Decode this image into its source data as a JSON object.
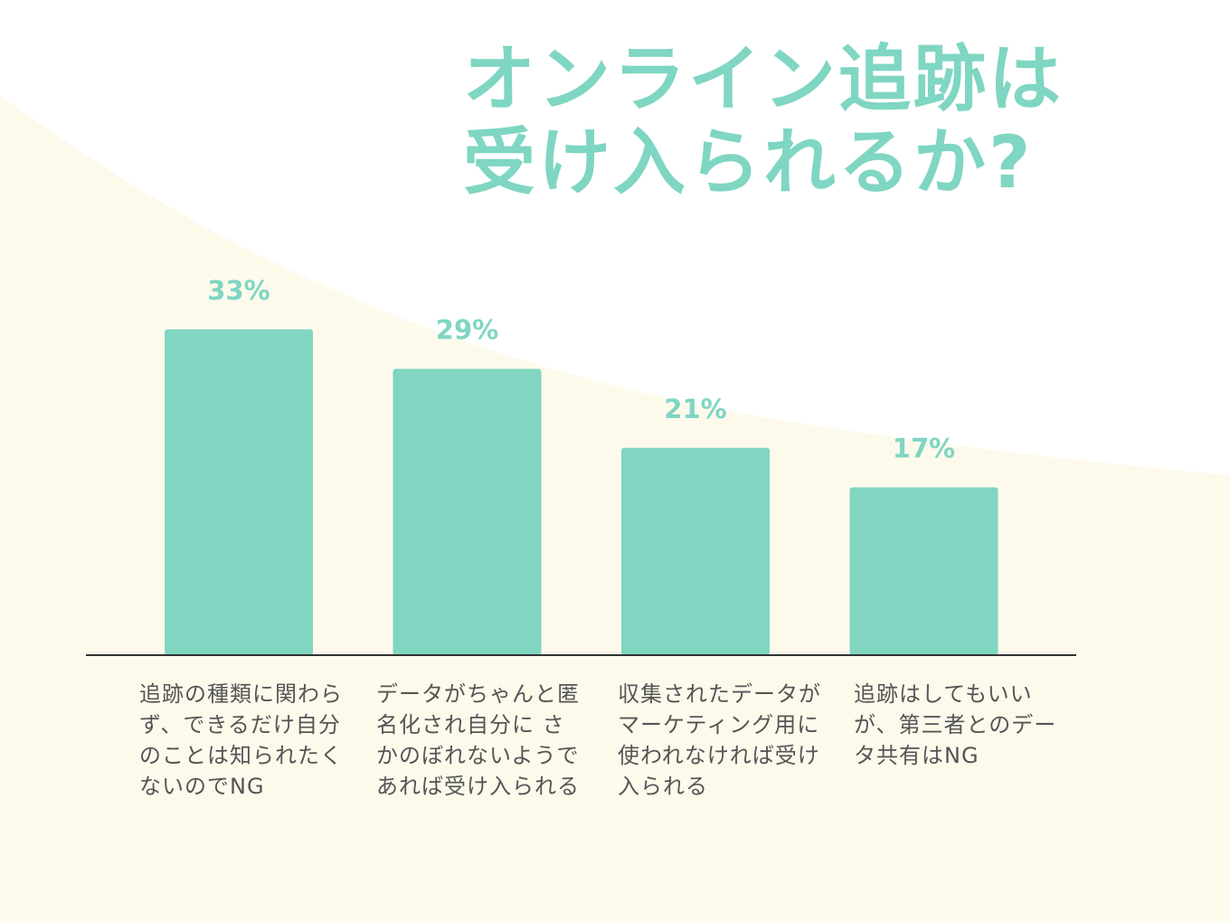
{
  "title": {
    "line1": "オンライン追跡は",
    "line2": "受け入られるか?"
  },
  "colors": {
    "bar": "#80d6c1",
    "value_label": "#7fd6c2",
    "title": "#7fd6c2",
    "axis": "#333333",
    "category_text": "#555555",
    "background_wash": "#fdfaec"
  },
  "chart_data": {
    "type": "bar",
    "title": "オンライン追跡は受け入られるか?",
    "xlabel": "",
    "ylabel": "",
    "unit": "%",
    "ylim": [
      0,
      35
    ],
    "grid": false,
    "legend": "none",
    "categories": [
      "追跡の種類に関わらず、できるだけ自分のことは知られたくないのでNG",
      "データがちゃんと匿名化され自分に さかのぼれないようであれば受け入られる",
      "収集されたデータがマーケティング用に使われなければ受け入られる",
      "追跡はしてもいいが、第三者とのデータ共有はNG"
    ],
    "values": [
      33,
      29,
      21,
      17
    ],
    "value_labels": [
      "33%",
      "29%",
      "21%",
      "17%"
    ]
  }
}
